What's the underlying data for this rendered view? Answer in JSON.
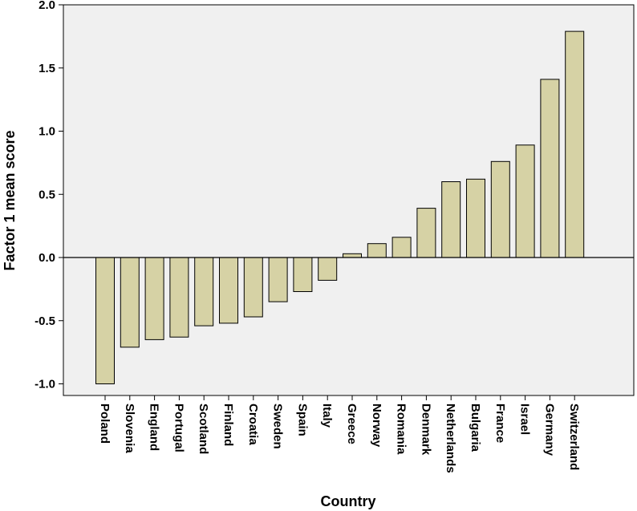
{
  "chart_data": {
    "type": "bar",
    "xlabel": "Country",
    "ylabel": "Factor 1 mean score",
    "ylim": [
      -1.1,
      2.0
    ],
    "yticks": [
      "2.0",
      "1.5",
      "1.0",
      "0.5",
      "0.0",
      "-0.5",
      "-1.0"
    ],
    "grid": false,
    "categories": [
      "Poland",
      "Slovenia",
      "England",
      "Portugal",
      "Scotland",
      "Finland",
      "Croatia",
      "Sweden",
      "Spain",
      "Italy",
      "Greece",
      "Norway",
      "Romania",
      "Denmark",
      "Netherlands",
      "Bulgaria",
      "France",
      "Israel",
      "Germany",
      "Switzerland"
    ],
    "values": [
      -1.0,
      -0.71,
      -0.65,
      -0.63,
      -0.54,
      -0.52,
      -0.47,
      -0.35,
      -0.27,
      -0.18,
      0.03,
      0.11,
      0.16,
      0.39,
      0.6,
      0.62,
      0.76,
      0.89,
      1.41,
      1.79
    ],
    "colors": {
      "bar_fill": "#d6d2a5",
      "bar_stroke": "#000000",
      "plot_bg": "#f0f0f0"
    }
  }
}
